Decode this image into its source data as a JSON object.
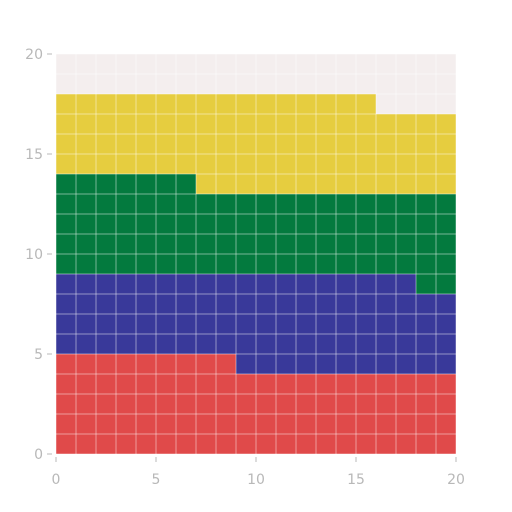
{
  "chart_data": {
    "type": "heatmap",
    "title": "",
    "xlabel": "",
    "ylabel": "",
    "xlim": [
      0,
      20
    ],
    "ylim": [
      0,
      20
    ],
    "grid": true,
    "x_ticks": [
      "0",
      "5",
      "10",
      "15",
      "20"
    ],
    "y_ticks": [
      "0",
      "5",
      "10",
      "15",
      "20"
    ],
    "background_color": "#f4eeee",
    "bands": [
      {
        "color": "#e04a4a",
        "segments": [
          {
            "x": [
              0,
              9
            ],
            "y": [
              0,
              5
            ]
          },
          {
            "x": [
              9,
              20
            ],
            "y": [
              0,
              4
            ]
          }
        ]
      },
      {
        "color": "#39399a",
        "segments": [
          {
            "x": [
              0,
              9
            ],
            "y": [
              5,
              9
            ]
          },
          {
            "x": [
              9,
              18
            ],
            "y": [
              4,
              9
            ]
          },
          {
            "x": [
              18,
              20
            ],
            "y": [
              4,
              8
            ]
          }
        ]
      },
      {
        "color": "#037a3e",
        "segments": [
          {
            "x": [
              0,
              7
            ],
            "y": [
              9,
              14
            ]
          },
          {
            "x": [
              7,
              18
            ],
            "y": [
              9,
              13
            ]
          },
          {
            "x": [
              18,
              20
            ],
            "y": [
              8,
              13
            ]
          }
        ]
      },
      {
        "color": "#e6cd3f",
        "segments": [
          {
            "x": [
              0,
              7
            ],
            "y": [
              14,
              18
            ]
          },
          {
            "x": [
              7,
              16
            ],
            "y": [
              13,
              18
            ]
          },
          {
            "x": [
              16,
              20
            ],
            "y": [
              13,
              17
            ]
          }
        ]
      }
    ]
  }
}
